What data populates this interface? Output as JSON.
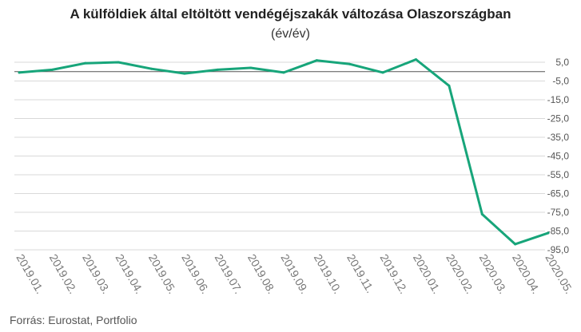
{
  "chart_data": {
    "type": "line",
    "title": "A külföldiek által eltöltött vendégéjszakák változása Olaszországban",
    "subtitle": "(év/év)",
    "xlabel": "",
    "ylabel": "",
    "x": [
      "2019.01.",
      "2019.02.",
      "2019.03.",
      "2019.04.",
      "2019.05.",
      "2019.06.",
      "2019.07.",
      "2019.08.",
      "2019.09.",
      "2019.10.",
      "2019.11.",
      "2019.12.",
      "2020.01.",
      "2020.02.",
      "2020.03.",
      "2020.04.",
      "2020.05."
    ],
    "series": [
      {
        "values": [
          -0.5,
          1.0,
          4.5,
          5.0,
          1.5,
          -1.0,
          1.0,
          2.0,
          -0.5,
          6.0,
          4.0,
          -0.5,
          6.5,
          -7.5,
          -76.0,
          -92.0,
          -86.0
        ],
        "color": "#17a57a"
      }
    ],
    "yticks": [
      "5,0",
      "-5,0",
      "-15,0",
      "-25,0",
      "-35,0",
      "-45,0",
      "-55,0",
      "-65,0",
      "-75,0",
      "-85,0",
      "-95,0"
    ],
    "ylim": [
      -95,
      5
    ],
    "grid": "horizontal",
    "zero_line_color": "#555555",
    "grid_color": "#d9d9d9",
    "legend": "none"
  },
  "source": "Forrás: Eurostat, Portfolio"
}
